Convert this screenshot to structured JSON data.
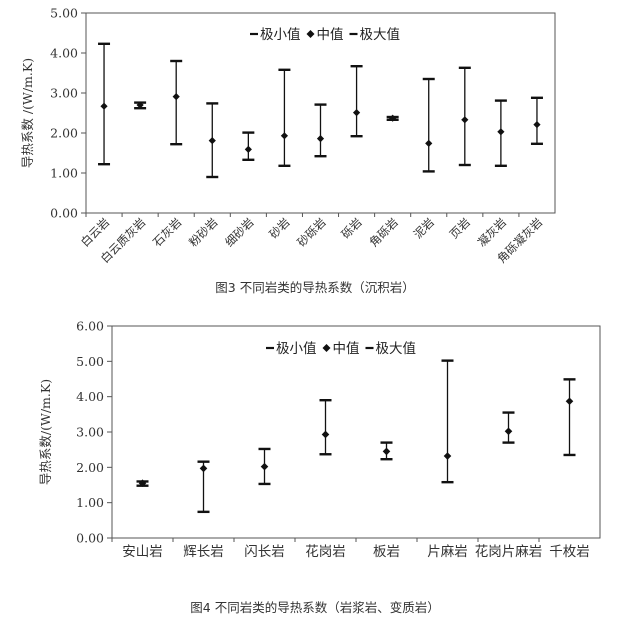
{
  "chart_data": [
    {
      "type": "errorbar",
      "title": "",
      "ylabel": "导热系数 /(W/m.K)",
      "ylim": [
        0,
        5
      ],
      "yticks": [
        "0.00",
        "1.00",
        "2.00",
        "3.00",
        "4.00",
        "5.00"
      ],
      "legend": {
        "min": "极小值",
        "mid": "中值",
        "max": "极大值",
        "position": "top-right"
      },
      "grid": false,
      "categories": [
        "白云岩",
        "白云质灰岩",
        "石灰岩",
        "粉砂岩",
        "细砂岩",
        "砂岩",
        "砂砾岩",
        "砾岩",
        "角砾岩",
        "泥岩",
        "页岩",
        "凝灰岩",
        "角砾凝灰岩"
      ],
      "min": [
        1.22,
        2.62,
        1.72,
        0.9,
        1.33,
        1.18,
        1.42,
        1.92,
        2.33,
        1.04,
        1.2,
        1.18,
        1.73
      ],
      "mid": [
        2.67,
        2.7,
        2.91,
        1.81,
        1.59,
        1.93,
        1.86,
        2.51,
        2.37,
        1.74,
        2.33,
        2.03,
        2.21
      ],
      "max": [
        4.23,
        2.76,
        3.8,
        2.74,
        2.01,
        3.58,
        2.71,
        3.67,
        2.4,
        3.35,
        3.63,
        2.81,
        2.88
      ]
    },
    {
      "type": "errorbar",
      "title": "",
      "ylabel": "导热系数/(W/m.K)",
      "ylim": [
        0,
        6
      ],
      "yticks": [
        "0.00",
        "1.00",
        "2.00",
        "3.00",
        "4.00",
        "5.00",
        "6.00"
      ],
      "legend": {
        "min": "极小值",
        "mid": "中值",
        "max": "极大值",
        "position": "top-center"
      },
      "grid": false,
      "categories": [
        "安山岩",
        "辉长岩",
        "闪长岩",
        "花岗岩",
        "板岩",
        "片麻岩",
        "花岗片麻岩",
        "千枚岩"
      ],
      "min": [
        1.48,
        0.74,
        1.53,
        2.37,
        2.23,
        1.58,
        2.7,
        2.35
      ],
      "mid": [
        1.55,
        1.97,
        2.02,
        2.93,
        2.45,
        2.32,
        3.02,
        3.87
      ],
      "max": [
        1.6,
        2.16,
        2.52,
        3.9,
        2.7,
        5.02,
        3.55,
        4.49
      ]
    }
  ],
  "captions": {
    "fig3": "图3 不同岩类的导热系数（沉积岩）",
    "fig4": "图4 不同岩类的导热系数（岩浆岩、变质岩）"
  }
}
